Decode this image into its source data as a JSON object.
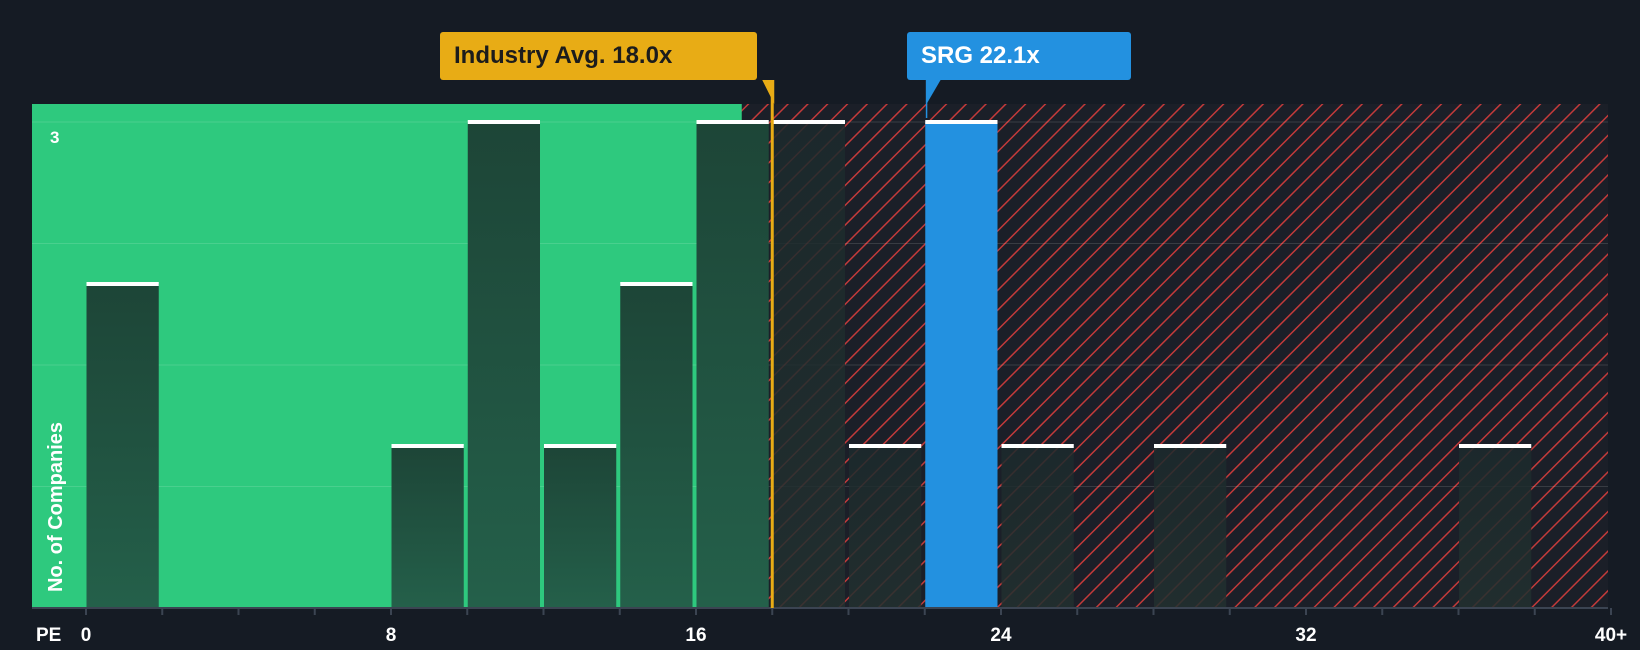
{
  "chart_data": {
    "type": "bar",
    "xlabel": "PE",
    "ylabel": "No. of Companies",
    "x_ticks": [
      "0",
      "8",
      "16",
      "24",
      "32",
      "40+"
    ],
    "x_tick_values": [
      0,
      8,
      16,
      24,
      32,
      40
    ],
    "xlim": [
      -1.5,
      41
    ],
    "ylim": [
      0,
      3
    ],
    "y_tick_label": "3",
    "bin_width": 2,
    "bars": [
      {
        "x_start": 0,
        "value": 2
      },
      {
        "x_start": 8,
        "value": 1
      },
      {
        "x_start": 10,
        "value": 3
      },
      {
        "x_start": 12,
        "value": 1
      },
      {
        "x_start": 14,
        "value": 2
      },
      {
        "x_start": 16,
        "value": 3
      },
      {
        "x_start": 18,
        "value": 3
      },
      {
        "x_start": 20,
        "value": 1
      },
      {
        "x_start": 22,
        "value": 3,
        "highlight": true
      },
      {
        "x_start": 24,
        "value": 1
      },
      {
        "x_start": 28,
        "value": 1
      },
      {
        "x_start": 36,
        "value": 1
      }
    ],
    "industry_avg": 18.0,
    "industry_label": "Industry Avg. 18.0x",
    "company": "SRG",
    "company_value": 22.1,
    "company_label": "SRG 22.1x",
    "fair_zone_end": 17.2
  },
  "colors": {
    "background": "#151b24",
    "fair_zone": "#2ec97e",
    "bar_dark": "#1e4a3c",
    "highlight": "#2391e0",
    "industry": "#e8ac15",
    "hatch": "#c23a3a"
  }
}
